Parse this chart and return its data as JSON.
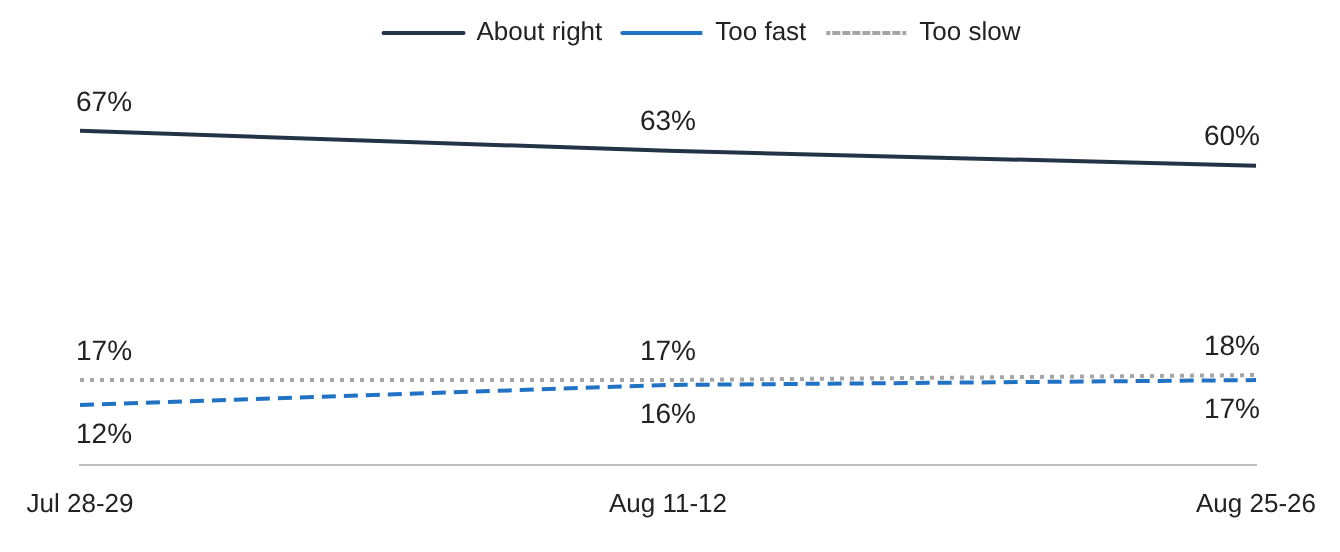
{
  "chart_data": {
    "type": "line",
    "categories": [
      "Jul 28-29",
      "Aug 11-12",
      "Aug 25-26"
    ],
    "grid": false,
    "legend": "top",
    "marker": "none",
    "tick_labels": "x",
    "series": [
      {
        "name": "About right",
        "color": "#243447",
        "line_style": "solid",
        "values": [
          67,
          63,
          60
        ],
        "value_labels": [
          "67%",
          "63%",
          "60%"
        ]
      },
      {
        "name": "Too fast",
        "color": "#2272c3",
        "line_style": "dashed",
        "values": [
          12,
          16,
          17
        ],
        "value_labels": [
          "12%",
          "16%",
          "17%"
        ]
      },
      {
        "name": "Too slow",
        "color": "#a6a6a6",
        "line_style": "dotted",
        "values": [
          17,
          17,
          18
        ],
        "value_labels": [
          "17%",
          "17%",
          "18%"
        ]
      }
    ]
  }
}
